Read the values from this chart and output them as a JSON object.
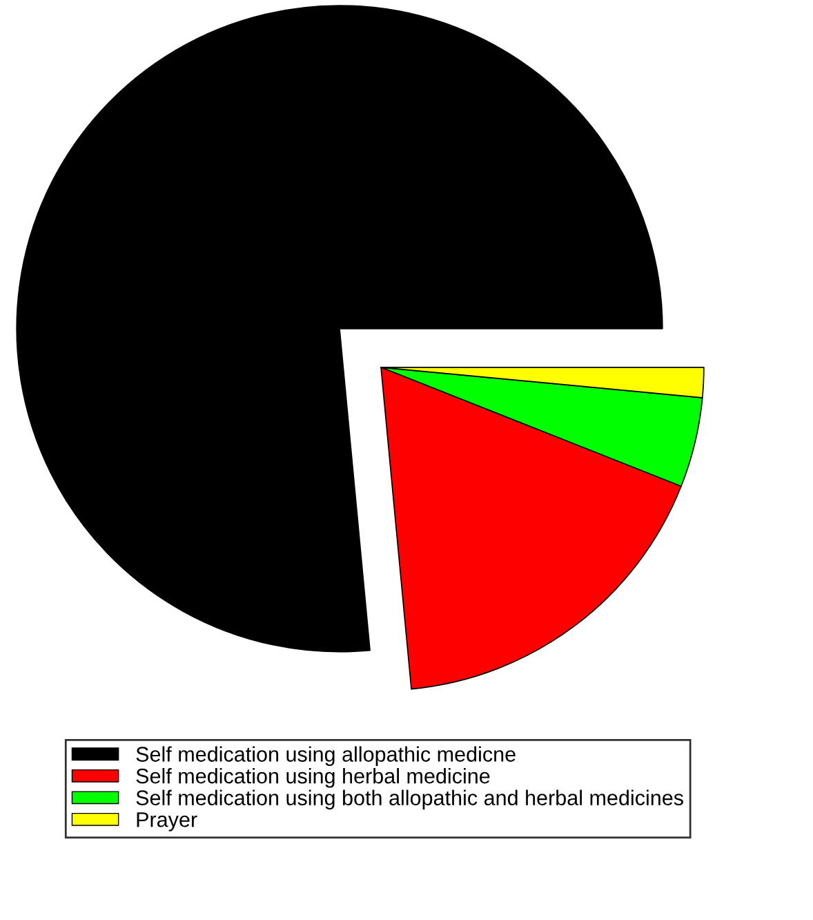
{
  "chart_data": {
    "type": "pie",
    "categories": [
      "Self medication using allopathic medicne",
      "Self medication using herbal medicine",
      "Self medication using both allopathic and herbal medicines",
      "Prayer"
    ],
    "values": [
      76.5,
      17.5,
      4.5,
      1.5
    ],
    "colors": [
      "#000000",
      "#ff0000",
      "#00ff00",
      "#ffff00"
    ],
    "legend": "bottom"
  }
}
